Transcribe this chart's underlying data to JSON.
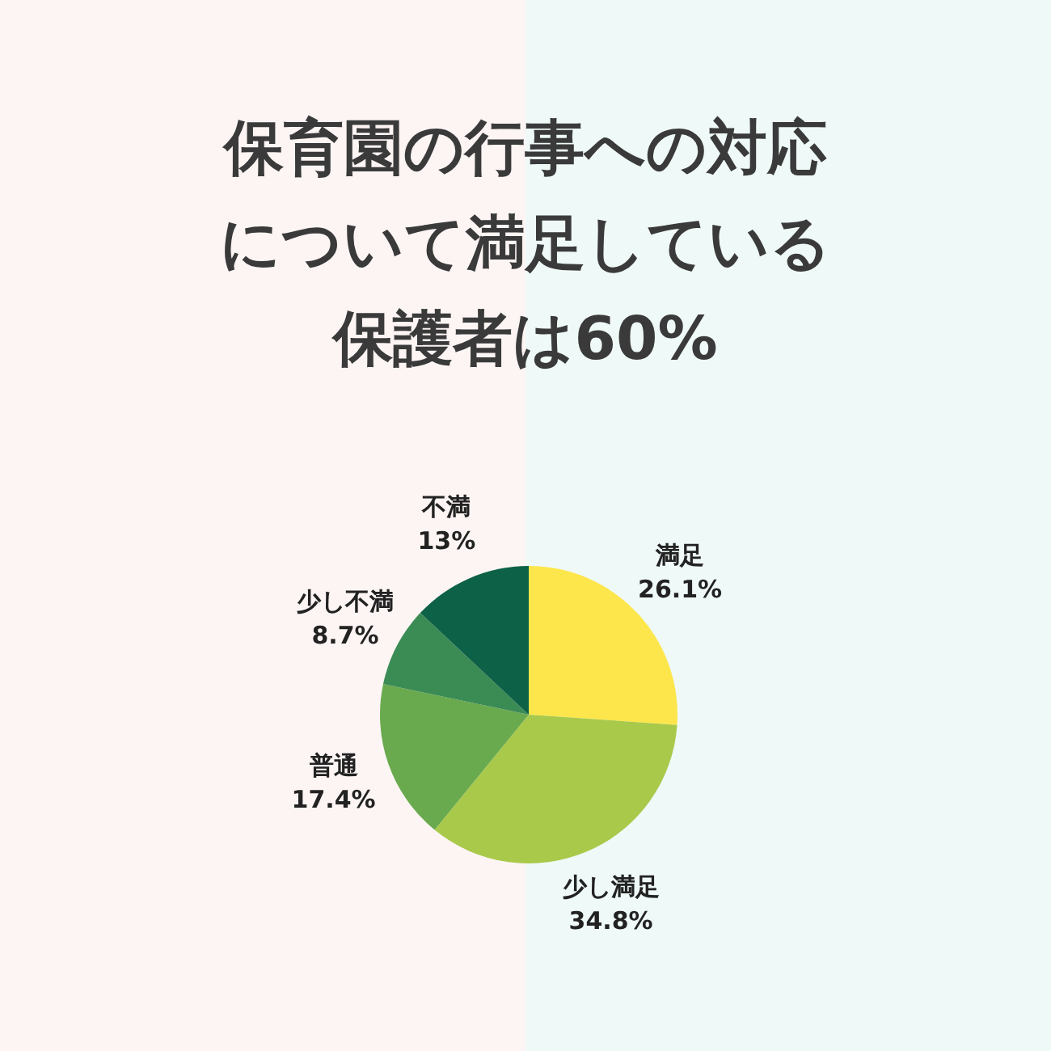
{
  "chart_data": {
    "type": "pie",
    "title": "保育園の行事への対応について満足している保護者は60%",
    "categories": [
      "満足",
      "少し満足",
      "普通",
      "少し不満",
      "不満"
    ],
    "values": [
      26.1,
      34.8,
      17.4,
      8.7,
      13
    ],
    "colors": [
      "#fde64b",
      "#a9c94a",
      "#69aa4f",
      "#3b8b55",
      "#0d6146"
    ],
    "value_labels": [
      "26.1%",
      "34.8%",
      "17.4%",
      "8.7%",
      "13%"
    ]
  }
}
